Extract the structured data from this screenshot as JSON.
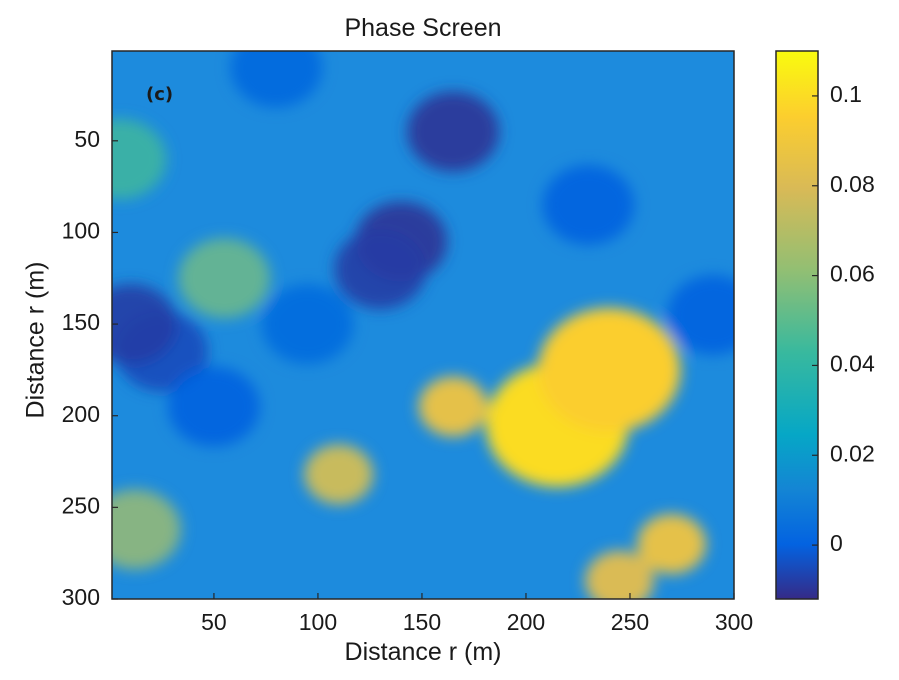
{
  "chart_data": {
    "type": "heatmap",
    "title": "Phase Screen",
    "panel_label": "(c)",
    "xlabel": "Distance r (m)",
    "ylabel": "Distance r (m)",
    "xlim": [
      1,
      300
    ],
    "ylim": [
      1,
      300
    ],
    "y_direction": "reversed",
    "x_ticks": [
      "50",
      "100",
      "150",
      "200",
      "250",
      "300"
    ],
    "y_ticks": [
      "50",
      "100",
      "150",
      "200",
      "250",
      "300"
    ],
    "colorbar": {
      "colormap": "parula",
      "range": [
        -0.012,
        0.11
      ],
      "ticks": [
        "0",
        "0.02",
        "0.04",
        "0.06",
        "0.08",
        "0.1"
      ]
    },
    "features": [
      {
        "x": 215,
        "y": 205,
        "value": 0.1
      },
      {
        "x": 240,
        "y": 175,
        "value": 0.095
      },
      {
        "x": 165,
        "y": 195,
        "value": 0.085
      },
      {
        "x": 270,
        "y": 270,
        "value": 0.085
      },
      {
        "x": 245,
        "y": 290,
        "value": 0.08
      },
      {
        "x": 110,
        "y": 232,
        "value": 0.075
      },
      {
        "x": 12,
        "y": 262,
        "value": 0.065
      },
      {
        "x": 55,
        "y": 125,
        "value": 0.055
      },
      {
        "x": 5,
        "y": 60,
        "value": 0.045
      },
      {
        "x": 165,
        "y": 45,
        "value": -0.01
      },
      {
        "x": 140,
        "y": 105,
        "value": -0.01
      },
      {
        "x": 130,
        "y": 120,
        "value": -0.008
      },
      {
        "x": 25,
        "y": 165,
        "value": -0.005
      },
      {
        "x": 50,
        "y": 195,
        "value": 0.0
      },
      {
        "x": 10,
        "y": 150,
        "value": -0.008
      },
      {
        "x": 230,
        "y": 85,
        "value": 0.0
      },
      {
        "x": 290,
        "y": 145,
        "value": 0.0
      },
      {
        "x": 80,
        "y": 10,
        "value": 0.002
      },
      {
        "x": 95,
        "y": 150,
        "value": 0.003
      }
    ]
  }
}
